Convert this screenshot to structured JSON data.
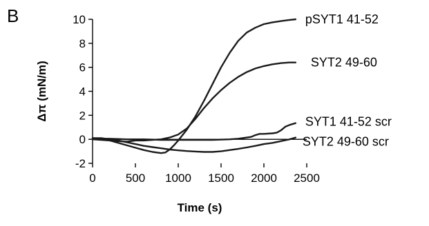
{
  "panel_label": "B",
  "chart_data": {
    "type": "line",
    "title": "",
    "xlabel": "Time (s)",
    "ylabel": "Δπ (mN/m)",
    "xlim": [
      0,
      2500
    ],
    "ylim": [
      -2,
      10
    ],
    "xticks": [
      0,
      500,
      1000,
      1500,
      2000,
      2500
    ],
    "yticks": [
      -2,
      0,
      2,
      4,
      6,
      8,
      10
    ],
    "grid": false,
    "legend": "none",
    "series": [
      {
        "name": "pSYT1 41-52",
        "color": "#1a1a1a",
        "points": [
          [
            0,
            0.1
          ],
          [
            100,
            0.05
          ],
          [
            200,
            -0.1
          ],
          [
            300,
            -0.3
          ],
          [
            400,
            -0.5
          ],
          [
            500,
            -0.7
          ],
          [
            600,
            -0.9
          ],
          [
            700,
            -1.05
          ],
          [
            800,
            -1.15
          ],
          [
            850,
            -1.1
          ],
          [
            900,
            -0.85
          ],
          [
            950,
            -0.5
          ],
          [
            1000,
            -0.1
          ],
          [
            1100,
            0.8
          ],
          [
            1200,
            1.9
          ],
          [
            1300,
            3.2
          ],
          [
            1400,
            4.6
          ],
          [
            1500,
            6.0
          ],
          [
            1600,
            7.2
          ],
          [
            1700,
            8.2
          ],
          [
            1800,
            8.9
          ],
          [
            1900,
            9.3
          ],
          [
            2000,
            9.6
          ],
          [
            2100,
            9.75
          ],
          [
            2200,
            9.85
          ],
          [
            2300,
            9.95
          ],
          [
            2370,
            10.0
          ]
        ]
      },
      {
        "name": "SYT2 49-60",
        "color": "#1a1a1a",
        "points": [
          [
            0,
            0.0
          ],
          [
            100,
            -0.05
          ],
          [
            200,
            -0.1
          ],
          [
            300,
            -0.15
          ],
          [
            400,
            -0.2
          ],
          [
            500,
            -0.1
          ],
          [
            600,
            -0.1
          ],
          [
            700,
            -0.05
          ],
          [
            800,
            0.0
          ],
          [
            900,
            0.15
          ],
          [
            1000,
            0.4
          ],
          [
            1100,
            0.9
          ],
          [
            1200,
            1.7
          ],
          [
            1300,
            2.6
          ],
          [
            1400,
            3.4
          ],
          [
            1500,
            4.1
          ],
          [
            1600,
            4.7
          ],
          [
            1700,
            5.2
          ],
          [
            1800,
            5.6
          ],
          [
            1900,
            5.9
          ],
          [
            2000,
            6.1
          ],
          [
            2100,
            6.25
          ],
          [
            2200,
            6.35
          ],
          [
            2300,
            6.4
          ],
          [
            2370,
            6.4
          ]
        ]
      },
      {
        "name": "SYT1 41-52 scr",
        "color": "#1a1a1a",
        "points": [
          [
            0,
            0.05
          ],
          [
            200,
            0.05
          ],
          [
            400,
            0.0
          ],
          [
            600,
            0.0
          ],
          [
            800,
            -0.05
          ],
          [
            1000,
            -0.05
          ],
          [
            1200,
            -0.05
          ],
          [
            1400,
            -0.05
          ],
          [
            1600,
            0.0
          ],
          [
            1700,
            0.05
          ],
          [
            1800,
            0.15
          ],
          [
            1850,
            0.2
          ],
          [
            1900,
            0.35
          ],
          [
            1950,
            0.45
          ],
          [
            2000,
            0.45
          ],
          [
            2100,
            0.5
          ],
          [
            2150,
            0.55
          ],
          [
            2200,
            0.75
          ],
          [
            2250,
            1.05
          ],
          [
            2300,
            1.2
          ],
          [
            2370,
            1.35
          ]
        ]
      },
      {
        "name": "SYT2 49-60 scr",
        "color": "#1a1a1a",
        "points": [
          [
            0,
            0.1
          ],
          [
            100,
            0.1
          ],
          [
            200,
            0.0
          ],
          [
            300,
            -0.1
          ],
          [
            400,
            -0.25
          ],
          [
            500,
            -0.4
          ],
          [
            600,
            -0.55
          ],
          [
            700,
            -0.65
          ],
          [
            800,
            -0.75
          ],
          [
            900,
            -0.85
          ],
          [
            1000,
            -0.92
          ],
          [
            1100,
            -0.98
          ],
          [
            1200,
            -1.02
          ],
          [
            1300,
            -1.05
          ],
          [
            1400,
            -1.05
          ],
          [
            1500,
            -1.0
          ],
          [
            1600,
            -0.9
          ],
          [
            1700,
            -0.8
          ],
          [
            1800,
            -0.68
          ],
          [
            1900,
            -0.55
          ],
          [
            2000,
            -0.4
          ],
          [
            2100,
            -0.3
          ],
          [
            2200,
            -0.15
          ],
          [
            2300,
            0.0
          ],
          [
            2370,
            0.15
          ]
        ]
      }
    ]
  }
}
